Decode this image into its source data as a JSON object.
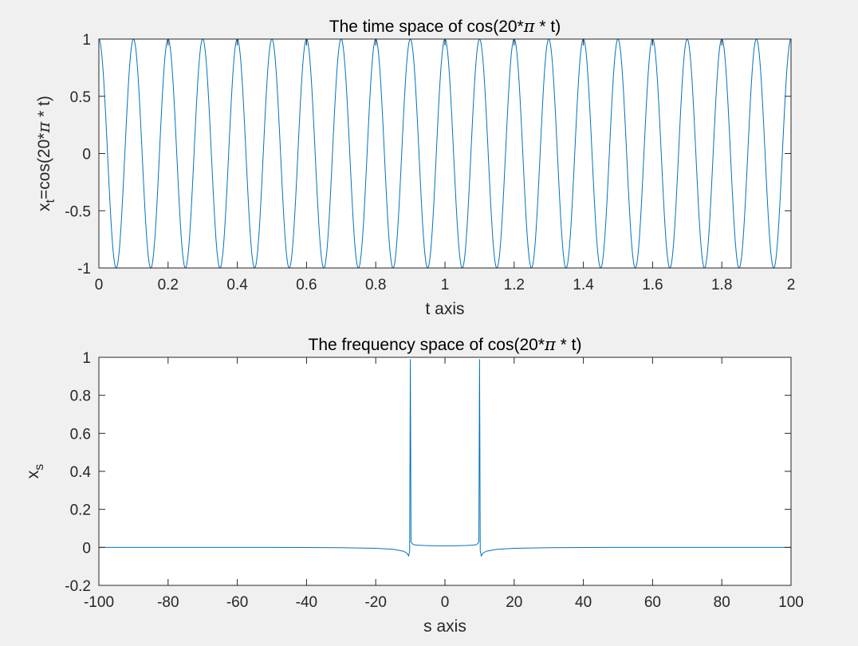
{
  "chart_data": [
    {
      "type": "line",
      "title": {
        "before": "The time space of cos(20*",
        "symbol": "π",
        "after": " * t)"
      },
      "xlabel": "t axis",
      "ylabel": {
        "base": "x",
        "sub": "t",
        "rest": "=cos(20*",
        "symbol": "π",
        "after": " * t)"
      },
      "xlim": [
        0,
        2
      ],
      "ylim": [
        -1,
        1
      ],
      "xticks": [
        0,
        0.2,
        0.4,
        0.6,
        0.8,
        1,
        1.2,
        1.4,
        1.6,
        1.8,
        2
      ],
      "xtick_labels": [
        "0",
        "0.2",
        "0.4",
        "0.6",
        "0.8",
        "1",
        "1.2",
        "1.4",
        "1.6",
        "1.8",
        "2"
      ],
      "yticks": [
        -1,
        -0.5,
        0,
        0.5,
        1
      ],
      "ytick_labels": [
        "-1",
        "-0.5",
        "0",
        "0.5",
        "1"
      ],
      "grid": false,
      "series": [
        {
          "function": "cos(20*pi*t)",
          "frequency_hz": 10,
          "amplitude": 1,
          "color": "#0072BD"
        }
      ]
    },
    {
      "type": "line",
      "title": {
        "before": "The frequency space of cos(20*",
        "symbol": "π",
        "after": " * t)"
      },
      "xlabel": "s axis",
      "ylabel": {
        "base": "x",
        "sub": "s"
      },
      "xlim": [
        -100,
        100
      ],
      "ylim": [
        -0.2,
        1
      ],
      "xticks": [
        -100,
        -80,
        -60,
        -40,
        -20,
        0,
        20,
        40,
        60,
        80,
        100
      ],
      "xtick_labels": [
        "-100",
        "-80",
        "-60",
        "-40",
        "-20",
        "0",
        "20",
        "40",
        "60",
        "80",
        "100"
      ],
      "yticks": [
        -0.2,
        0,
        0.2,
        0.4,
        0.6,
        0.8,
        1
      ],
      "ytick_labels": [
        "-0.2",
        "0",
        "0.2",
        "0.4",
        "0.6",
        "0.8",
        "1"
      ],
      "grid": false,
      "series": [
        {
          "color": "#0072BD",
          "x": [
            -100,
            -50,
            -30,
            -20,
            -15,
            -12,
            -11,
            -10.5,
            -10.2,
            -10,
            -9.8,
            -9.5,
            -9,
            -8,
            -6,
            -4,
            -2,
            0,
            2,
            4,
            6,
            8,
            9,
            9.5,
            9.8,
            10,
            10.2,
            10.5,
            11,
            12,
            15,
            20,
            30,
            50,
            100
          ],
          "y": [
            0,
            0,
            -0.002,
            -0.005,
            -0.01,
            -0.02,
            -0.03,
            -0.045,
            -0.02,
            0.99,
            0.03,
            0.02,
            0.014,
            0.012,
            0.01,
            0.009,
            0.008,
            0.008,
            0.008,
            0.009,
            0.01,
            0.012,
            0.014,
            0.02,
            0.03,
            0.99,
            -0.02,
            -0.045,
            -0.03,
            -0.02,
            -0.01,
            -0.005,
            -0.002,
            0,
            0
          ]
        }
      ]
    }
  ]
}
